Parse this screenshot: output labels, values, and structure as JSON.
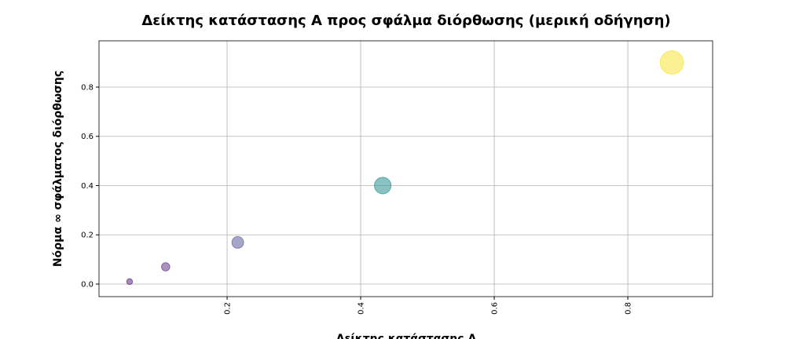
{
  "chart_data": {
    "type": "scatter",
    "title": "Δείκτης κατάστασης A προς σφάλμα διόρθωσης (μερική οδήγηση)",
    "xlabel": "Δείκτης κατάστασης A",
    "ylabel": "Νόρμα ∞ σφάλματος διόρθωσης",
    "x": [
      0.054,
      0.108,
      0.216,
      0.433,
      0.866
    ],
    "values": [
      0.01,
      0.07,
      0.169,
      0.4,
      0.9
    ],
    "sizes": [
      30,
      60,
      120,
      240,
      480
    ],
    "colors": [
      "#6a3d8a",
      "#6f4a92",
      "#6b6ba3",
      "#3a9a98",
      "#f8e64a"
    ],
    "xlim": [
      0.0082,
      0.927
    ],
    "ylim": [
      -0.051,
      0.988
    ],
    "xticks": [
      0.2,
      0.4,
      0.6,
      0.8
    ],
    "yticks": [
      {
        "value": 0,
        "label": "0.0"
      },
      0.2,
      0.4,
      0.6,
      0.8
    ],
    "grid": true
  }
}
